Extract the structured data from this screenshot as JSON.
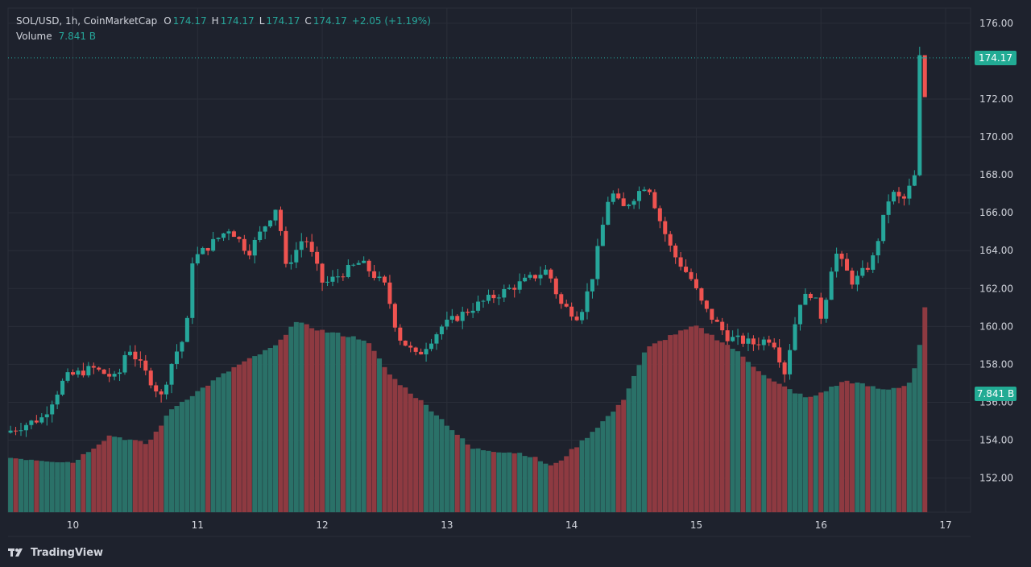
{
  "legend": {
    "symbol": "SOL/USD, 1h, CoinMarketCap",
    "o_label": "O",
    "o_value": "174.17",
    "h_label": "H",
    "h_value": "174.17",
    "l_label": "L",
    "l_value": "174.17",
    "c_label": "C",
    "c_value": "174.17",
    "change": "+2.05 (+1.19%)",
    "volume_label": "Volume",
    "volume_value": "7.841 B"
  },
  "price_tag": "174.17",
  "volume_tag": "7.841 B",
  "footer": {
    "brand": "TradingView"
  },
  "colors": {
    "up": "#26a69a",
    "down": "#ef5350",
    "up_vol": "#2a7168",
    "down_vol": "#8e3a41",
    "background": "#1e222d",
    "grid": "#2a2e39",
    "text": "#d1d4dc",
    "tag": "#22ab94"
  },
  "chart_data": {
    "type": "candlestick",
    "title": "SOL/USD, 1h, CoinMarketCap",
    "y_ticks": [
      "152.00",
      "154.00",
      "156.00",
      "158.00",
      "160.00",
      "162.00",
      "164.00",
      "166.00",
      "168.00",
      "170.00",
      "172.00",
      "176.00"
    ],
    "y_tick_values": [
      152,
      154,
      156,
      158,
      160,
      162,
      164,
      166,
      168,
      170,
      172,
      176
    ],
    "x_ticks": [
      "10",
      "11",
      "12",
      "13",
      "14",
      "15",
      "16",
      "17"
    ],
    "x_tick_days": [
      10,
      11,
      12,
      13,
      14,
      15,
      16,
      17
    ],
    "ylim": [
      150.2,
      176.8
    ],
    "x_start_day": 9.48,
    "x_end_day": 17.2,
    "last_price": 174.17,
    "grid": true,
    "key_points": [
      [
        9.5,
        154.4
      ],
      [
        9.8,
        155.2
      ],
      [
        9.98,
        157.3
      ],
      [
        10.2,
        157.8
      ],
      [
        10.4,
        157.2
      ],
      [
        10.48,
        159.0
      ],
      [
        10.75,
        156.3
      ],
      [
        10.85,
        158.4
      ],
      [
        10.95,
        159.6
      ],
      [
        11.0,
        163.5
      ],
      [
        11.3,
        165.2
      ],
      [
        11.45,
        163.9
      ],
      [
        11.68,
        166.4
      ],
      [
        11.75,
        163.1
      ],
      [
        11.9,
        164.8
      ],
      [
        12.05,
        162.2
      ],
      [
        12.35,
        163.4
      ],
      [
        12.55,
        162.1
      ],
      [
        12.65,
        159.5
      ],
      [
        12.8,
        158.4
      ],
      [
        13.0,
        160.0
      ],
      [
        13.3,
        161.2
      ],
      [
        13.7,
        162.5
      ],
      [
        13.85,
        163.0
      ],
      [
        13.95,
        161.2
      ],
      [
        14.1,
        160.5
      ],
      [
        14.2,
        162.4
      ],
      [
        14.35,
        167.2
      ],
      [
        14.45,
        166.2
      ],
      [
        14.65,
        167.6
      ],
      [
        14.75,
        165.6
      ],
      [
        14.85,
        163.9
      ],
      [
        15.0,
        162.5
      ],
      [
        15.1,
        161.0
      ],
      [
        15.3,
        159.4
      ],
      [
        15.5,
        159.1
      ],
      [
        15.65,
        159.4
      ],
      [
        15.75,
        157.6
      ],
      [
        15.87,
        161.3
      ],
      [
        15.97,
        161.8
      ],
      [
        16.05,
        160.4
      ],
      [
        16.15,
        164.0
      ],
      [
        16.3,
        162.3
      ],
      [
        16.45,
        163.4
      ],
      [
        16.6,
        167.1
      ],
      [
        16.7,
        166.6
      ],
      [
        16.8,
        168.0
      ],
      [
        16.8,
        172.1
      ],
      [
        16.82,
        174.17
      ]
    ],
    "volume_levels": [
      [
        9.5,
        0.12
      ],
      [
        10.0,
        0.11
      ],
      [
        10.3,
        0.17
      ],
      [
        10.6,
        0.15
      ],
      [
        10.8,
        0.23
      ],
      [
        11.3,
        0.32
      ],
      [
        11.65,
        0.37
      ],
      [
        11.77,
        0.42
      ],
      [
        12.0,
        0.4
      ],
      [
        12.35,
        0.38
      ],
      [
        12.55,
        0.3
      ],
      [
        12.9,
        0.22
      ],
      [
        13.2,
        0.14
      ],
      [
        13.6,
        0.13
      ],
      [
        13.7,
        0.12
      ],
      [
        13.85,
        0.1
      ],
      [
        14.1,
        0.16
      ],
      [
        14.4,
        0.24
      ],
      [
        14.6,
        0.36
      ],
      [
        14.8,
        0.39
      ],
      [
        15.0,
        0.41
      ],
      [
        15.3,
        0.36
      ],
      [
        15.6,
        0.29
      ],
      [
        15.9,
        0.25
      ],
      [
        16.2,
        0.29
      ],
      [
        16.5,
        0.27
      ],
      [
        16.7,
        0.28
      ],
      [
        16.78,
        0.34
      ],
      [
        16.83,
        0.45
      ]
    ]
  }
}
